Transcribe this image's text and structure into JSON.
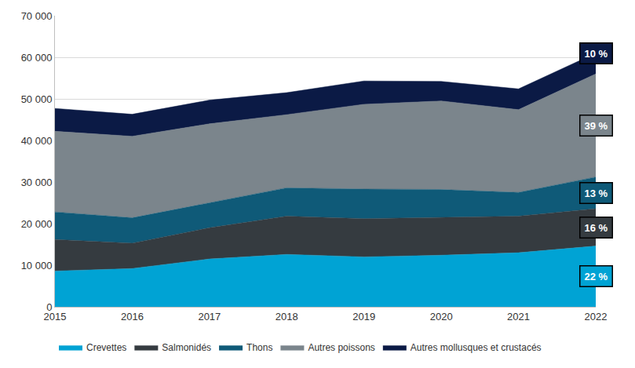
{
  "chart_data": {
    "type": "area",
    "stacked": true,
    "grid": true,
    "legend": "bottom",
    "x": [
      2015,
      2016,
      2017,
      2018,
      2019,
      2020,
      2021,
      2022
    ],
    "xlim": [
      2015,
      2022
    ],
    "xticks": [
      2015,
      2016,
      2017,
      2018,
      2019,
      2020,
      2021,
      2022
    ],
    "ylim": [
      0,
      70000
    ],
    "yticks": [
      0,
      {
        "value": 10000,
        "label": "10 000"
      },
      {
        "value": 20000,
        "label": "20 000"
      },
      {
        "value": 30000,
        "label": "30 000"
      },
      {
        "value": 40000,
        "label": "40 000"
      },
      {
        "value": 50000,
        "label": "50 000"
      },
      {
        "value": 60000,
        "label": "60 000"
      },
      {
        "value": 70000,
        "label": "70 000"
      }
    ],
    "series": [
      {
        "name": "Crevettes",
        "color": "#00a3d4",
        "values": [
          8600,
          9200,
          11500,
          12600,
          12000,
          12400,
          13000,
          14600
        ]
      },
      {
        "name": "Salmonidés",
        "color": "#353b40",
        "values": [
          7600,
          6100,
          7500,
          9200,
          9200,
          9100,
          8800,
          9000
        ]
      },
      {
        "name": "Thons",
        "color": "#0f5a78",
        "values": [
          6600,
          6100,
          6000,
          6800,
          7100,
          6700,
          5700,
          7600
        ]
      },
      {
        "name": "Autres poissons",
        "color": "#7b858c",
        "values": [
          19400,
          19600,
          19000,
          17600,
          20400,
          21300,
          19900,
          24800
        ]
      },
      {
        "name": "Autres mollusques et crustacés",
        "color": "#0b1a45",
        "values": [
          5500,
          5300,
          5700,
          5300,
          5600,
          4700,
          5000,
          5000
        ]
      }
    ],
    "annotations": [
      {
        "series": "Crevettes",
        "text": "22 %"
      },
      {
        "series": "Salmonidés",
        "text": "16 %"
      },
      {
        "series": "Thons",
        "text": "13 %"
      },
      {
        "series": "Autres poissons",
        "text": "39 %"
      },
      {
        "series": "Autres mollusques et crustacés",
        "text": "10 %"
      }
    ]
  }
}
